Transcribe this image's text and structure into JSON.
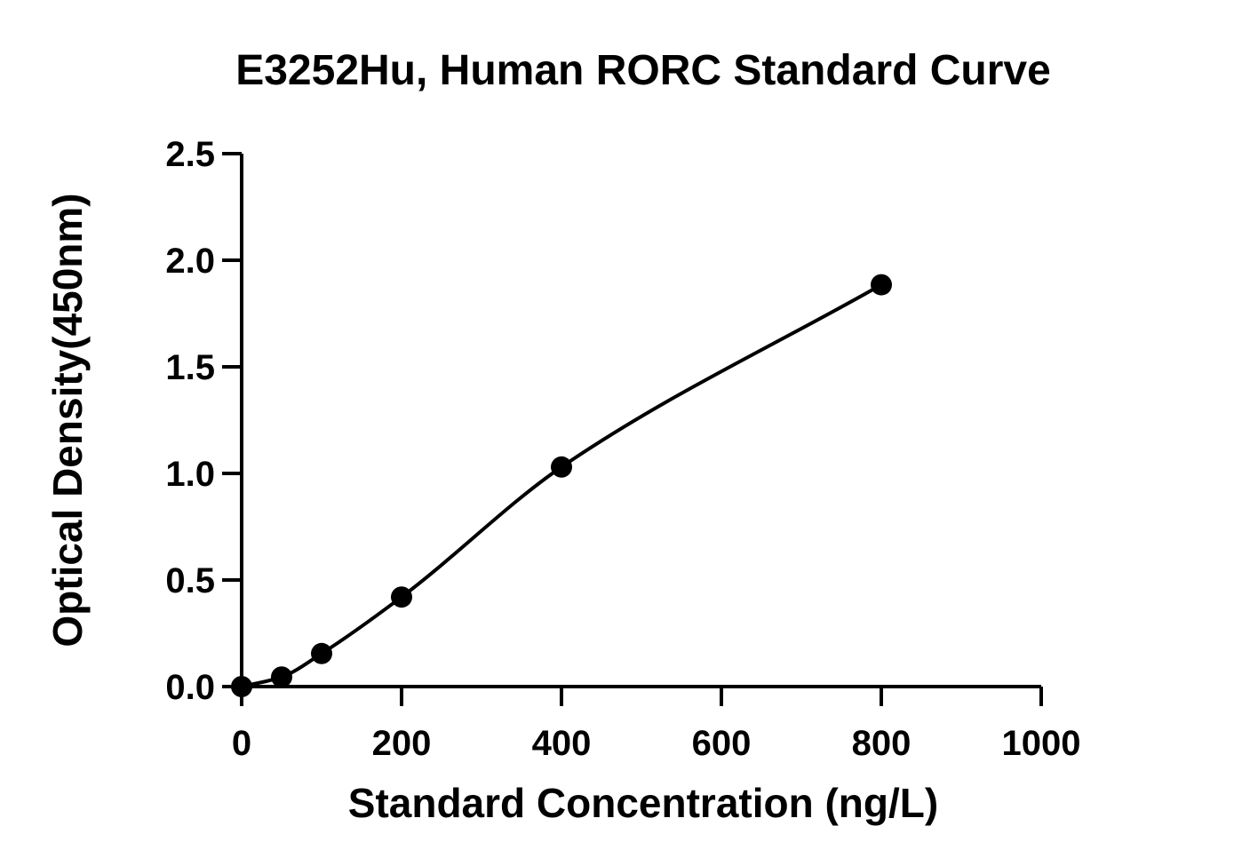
{
  "chart_data": {
    "type": "scatter",
    "title": "E3252Hu, Human RORC Standard Curve",
    "xlabel": "Standard Concentration (ng/L)",
    "ylabel": "Optical Density(450nm)",
    "xlim": [
      0,
      1000
    ],
    "ylim": [
      0,
      2.5
    ],
    "xticks": [
      0,
      200,
      400,
      600,
      800,
      1000
    ],
    "xtick_labels": [
      "0",
      "200",
      "400",
      "600",
      "800",
      "1000"
    ],
    "yticks": [
      0,
      0.5,
      1.0,
      1.5,
      2.0,
      2.5
    ],
    "ytick_labels": [
      "0.0",
      "0.5",
      "1.0",
      "1.5",
      "2.0",
      "2.5"
    ],
    "grid": false,
    "series": [
      {
        "x": [
          0,
          50,
          100,
          200,
          400,
          800
        ],
        "y": [
          0.0,
          0.045,
          0.155,
          0.42,
          1.03,
          1.885
        ]
      }
    ],
    "fit_curve": true
  }
}
